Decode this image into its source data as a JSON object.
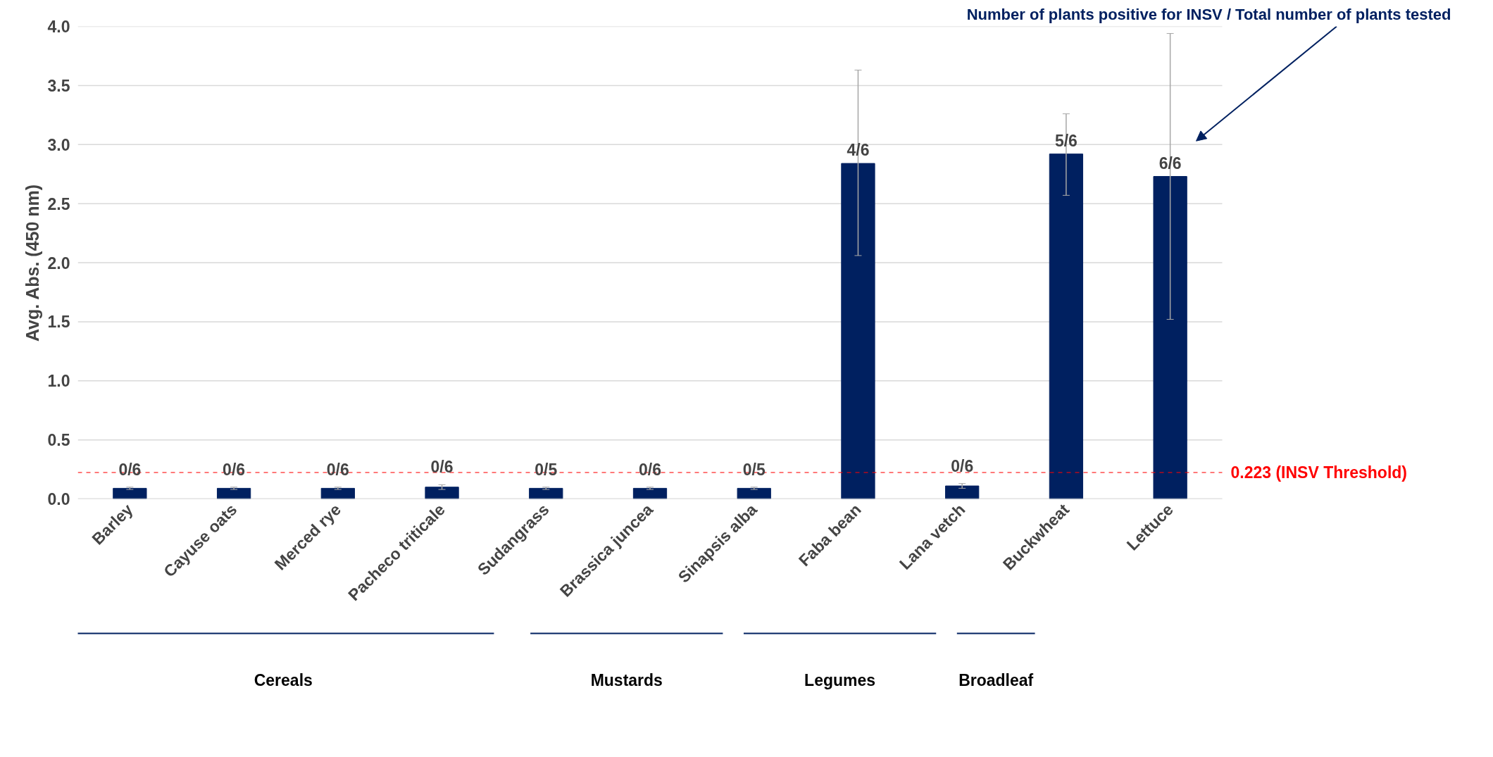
{
  "chart_data": {
    "type": "bar",
    "title": "Number of plants positive for INSV / Total number of plants tested",
    "ylabel": "Avg. Abs. (450 nm)",
    "categories": [
      "Barley",
      "Cayuse oats",
      "Merced rye",
      "Pacheco triticale",
      "Sudangrass",
      "Brassica juncea",
      "Sinapsis alba",
      "Faba bean",
      "Lana vetch",
      "Buckwheat",
      "Lettuce"
    ],
    "values": [
      0.09,
      0.09,
      0.09,
      0.1,
      0.09,
      0.09,
      0.09,
      2.84,
      0.11,
      2.92,
      2.73
    ],
    "errors": [
      0.01,
      0.01,
      0.01,
      0.02,
      0.01,
      0.01,
      0.01,
      [
        2.06,
        3.63
      ],
      0.02,
      [
        2.57,
        3.26
      ],
      [
        1.52,
        3.94
      ]
    ],
    "color": "#002060",
    "ylim": [
      0,
      4
    ],
    "yticks": [
      {
        "value": 0,
        "label": "0.0"
      },
      {
        "value": 0.5,
        "label": "0.5"
      },
      {
        "value": 1,
        "label": "1.0"
      },
      {
        "value": 1.5,
        "label": "1.5"
      },
      {
        "value": 2,
        "label": "2.0"
      },
      {
        "value": 2.5,
        "label": "2.5"
      },
      {
        "value": 3,
        "label": "3.0"
      },
      {
        "value": 3.5,
        "label": "3.5"
      },
      {
        "value": 4,
        "label": "4.0"
      }
    ],
    "grid": "y",
    "ref_lines": [
      {
        "axis": "y",
        "value": 0.223,
        "label": "0.223 (INSV Threshold)",
        "color": "#ff0000",
        "line_style": "dashed"
      }
    ],
    "annotations": [
      {
        "text": "0/6",
        "x": "Barley",
        "y": 0.1
      },
      {
        "text": "0/6",
        "x": "Cayuse oats",
        "y": 0.1
      },
      {
        "text": "0/6",
        "x": "Merced rye",
        "y": 0.1
      },
      {
        "text": "0/6",
        "x": "Pacheco triticale",
        "y": 0.12
      },
      {
        "text": "0/5",
        "x": "Sudangrass",
        "y": 0.1
      },
      {
        "text": "0/6",
        "x": "Brassica juncea",
        "y": 0.1
      },
      {
        "text": "0/5",
        "x": "Sinapsis alba",
        "y": 0.1
      },
      {
        "text": "4/6",
        "x": "Faba bean",
        "y": 2.84
      },
      {
        "text": "0/6",
        "x": "Lana vetch",
        "y": 0.13
      },
      {
        "text": "5/6",
        "x": "Buckwheat",
        "y": 2.92
      },
      {
        "text": "6/6",
        "x": "Lettuce",
        "y": 2.73
      },
      "Cereals",
      "Mustards",
      "Legumes",
      "Broadleaf"
    ]
  }
}
